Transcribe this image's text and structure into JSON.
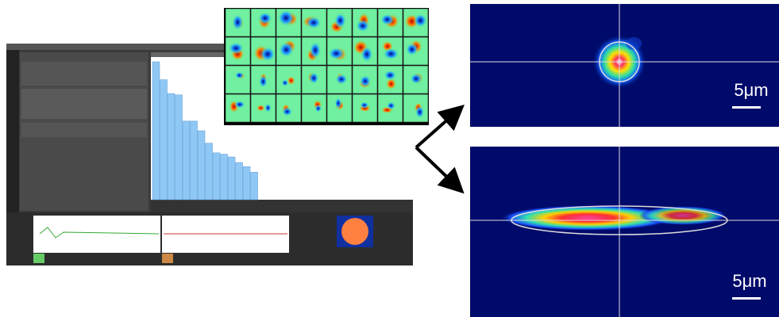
{
  "software_panel": {
    "mode_spectrum": {
      "values": [
        100,
        87,
        77,
        76,
        57,
        57,
        50,
        41,
        34,
        33,
        31,
        27,
        24,
        20
      ],
      "ylim": [
        0,
        100
      ],
      "color": "#8fc8f4"
    }
  },
  "beam_images": [
    {
      "scale_label": "5μm"
    },
    {
      "scale_label": "5μm"
    }
  ]
}
